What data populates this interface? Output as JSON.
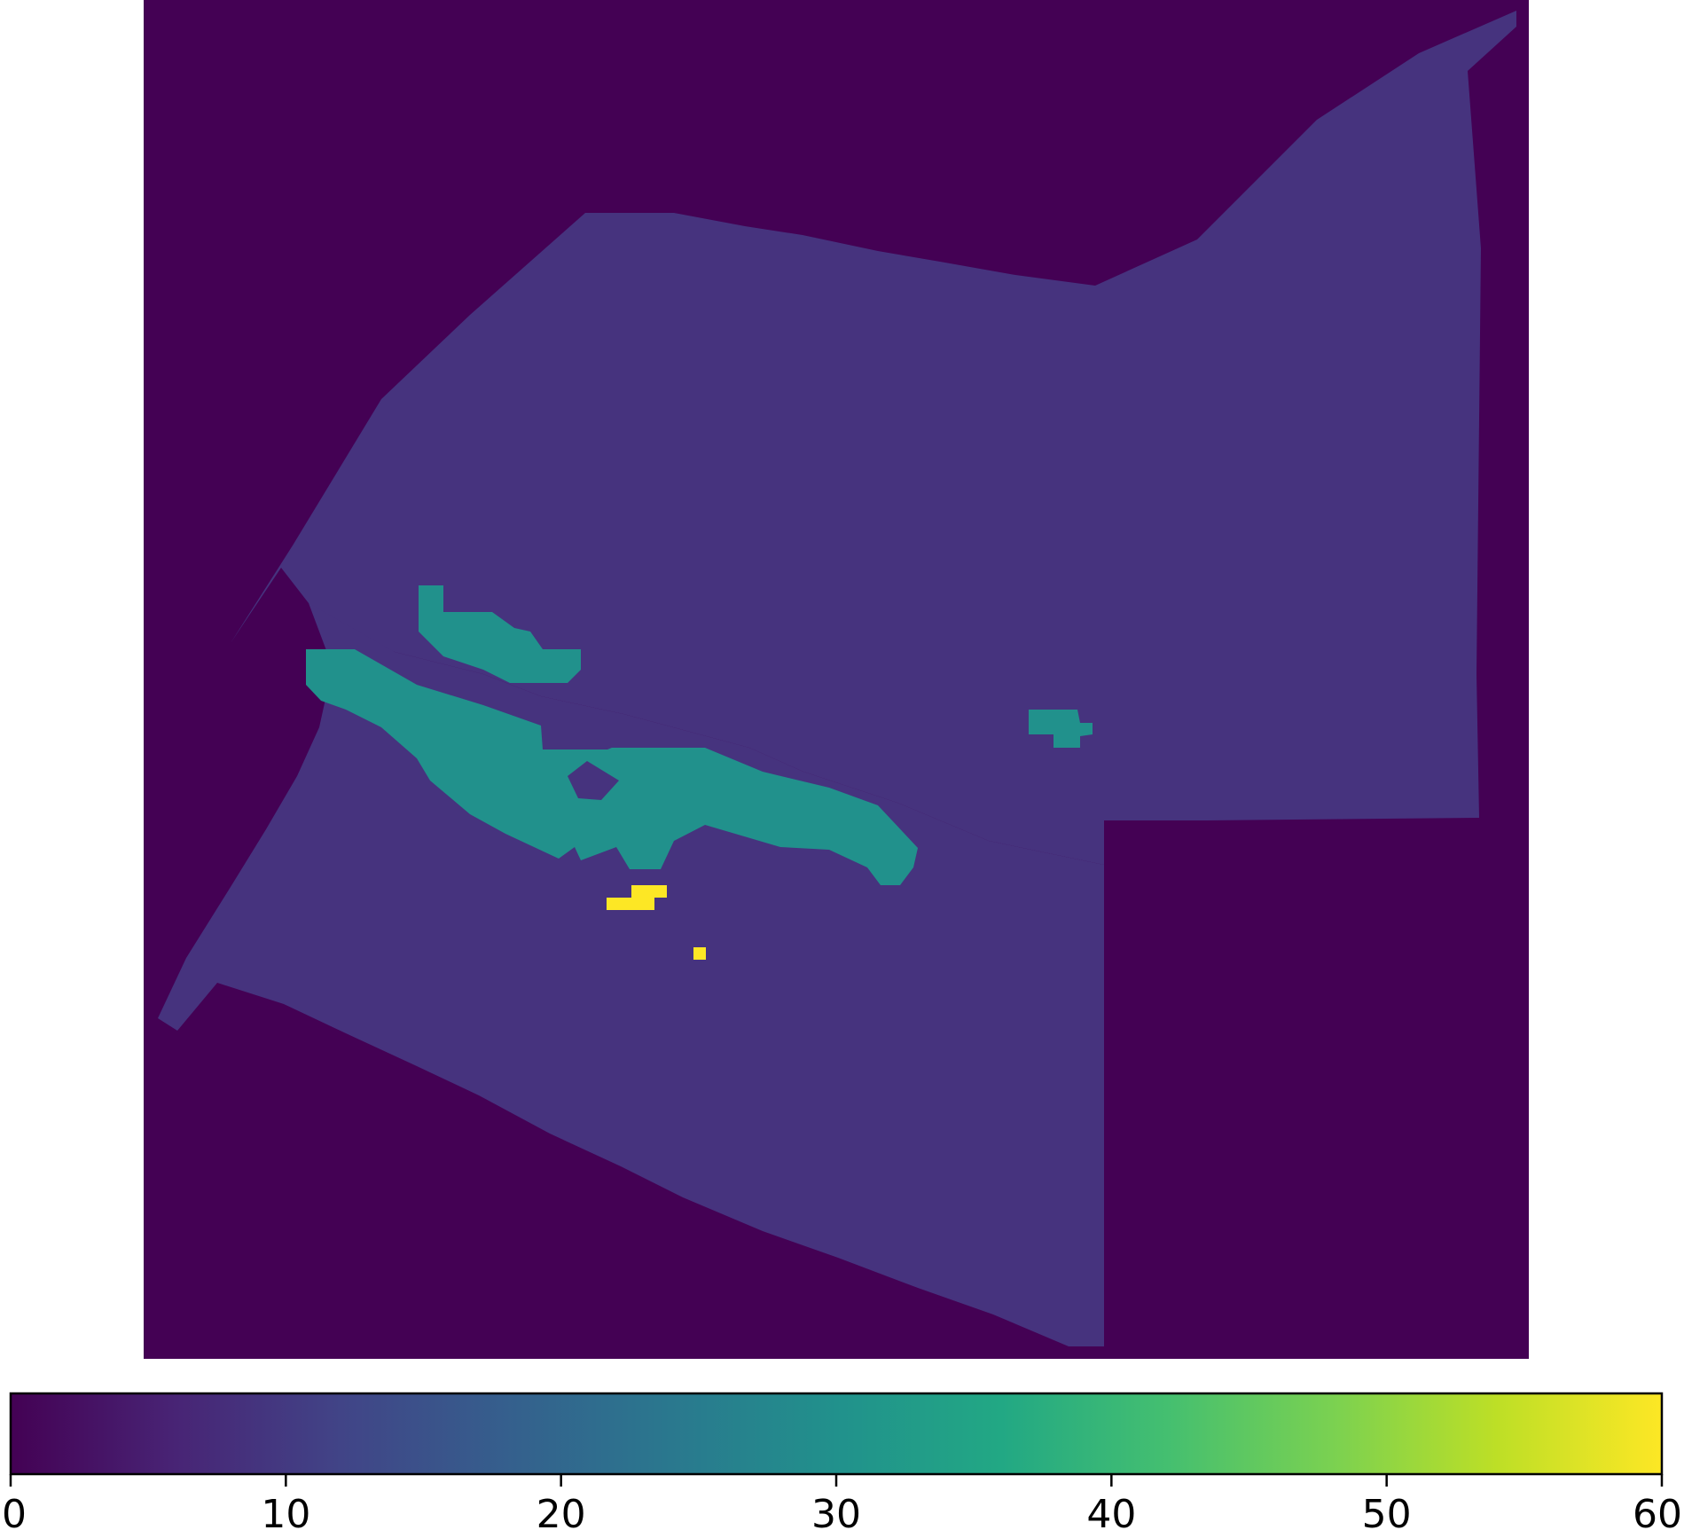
{
  "chart_data": {
    "type": "heatmap",
    "title": "",
    "xlabel": "",
    "ylabel": "",
    "grid": false,
    "colormap": "viridis",
    "colorbar": {
      "orientation": "horizontal",
      "placement": "bottom",
      "range": [
        0,
        60
      ],
      "ticks": [
        0,
        10,
        20,
        30,
        40,
        50,
        60
      ],
      "tick_labels": [
        "0",
        "10",
        "20",
        "30",
        "40",
        "50",
        "60"
      ]
    },
    "regions": [
      {
        "name": "background",
        "value": 0,
        "color": "#440154"
      },
      {
        "name": "upper-sector",
        "value": 11,
        "color": "#46337e"
      },
      {
        "name": "lower-sector",
        "value": 11,
        "color": "#46337e"
      },
      {
        "name": "teal-band",
        "value": 32,
        "color": "#21918c"
      },
      {
        "name": "teal-small-left",
        "value": 32,
        "color": "#21918c"
      },
      {
        "name": "teal-small-right",
        "value": 32,
        "color": "#21918c"
      },
      {
        "name": "yellow-spot",
        "value": 60,
        "color": "#fde725"
      },
      {
        "name": "yellow-dot",
        "value": 60,
        "color": "#fde725"
      }
    ]
  }
}
